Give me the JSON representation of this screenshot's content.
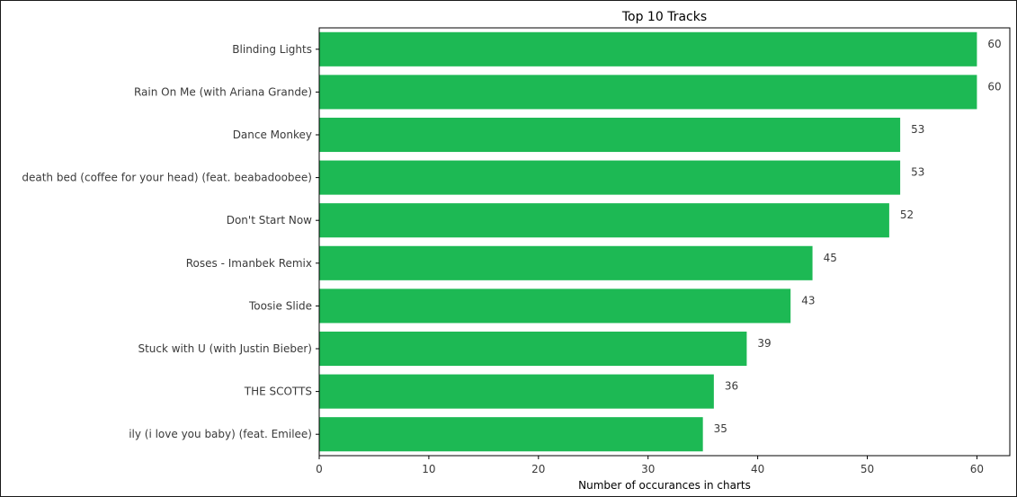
{
  "chart_data": {
    "type": "bar",
    "orientation": "horizontal",
    "title": "Top 10 Tracks",
    "xlabel": "Number of occurances in charts",
    "ylabel": "",
    "categories": [
      "Blinding Lights",
      "Rain On Me (with Ariana Grande)",
      "Dance Monkey",
      "death bed (coffee for your head) (feat. beabadoobee)",
      "Don't Start Now",
      "Roses - Imanbek Remix",
      "Toosie Slide",
      "Stuck with U (with Justin Bieber)",
      "THE SCOTTS",
      "ily (i love you baby) (feat. Emilee)"
    ],
    "values": [
      60,
      60,
      53,
      53,
      52,
      45,
      43,
      39,
      36,
      35
    ],
    "xlim": [
      0,
      63
    ],
    "xticks": [
      0,
      10,
      20,
      30,
      40,
      50,
      60
    ],
    "grid": false,
    "bar_color": "#1db954",
    "data_labels": true
  }
}
